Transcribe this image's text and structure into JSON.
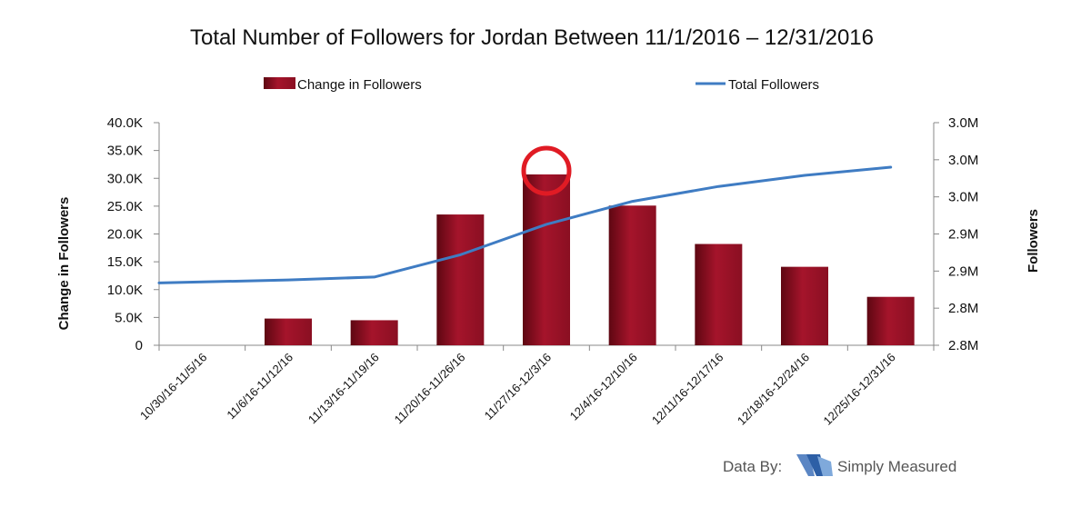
{
  "chart_data": {
    "type": "bar",
    "title": "Total Number of Followers for Jordan Between 11/1/2016 – 12/31/2016",
    "categories": [
      "10/30/16-11/5/16",
      "11/6/16-11/12/16",
      "11/13/16-11/19/16",
      "11/20/16-11/26/16",
      "11/27/16-12/3/16",
      "12/4/16-12/10/16",
      "12/11/16-12/17/16",
      "12/18/16-12/24/16",
      "12/25/16-12/31/16"
    ],
    "series": [
      {
        "name": "Change in Followers",
        "type": "bar",
        "axis": "left",
        "values": [
          0,
          4800,
          4500,
          23500,
          30700,
          25100,
          18200,
          14100,
          8700
        ]
      },
      {
        "name": "Total Followers",
        "type": "line",
        "axis": "right",
        "values": [
          2834000,
          2838000,
          2842000,
          2872000,
          2913000,
          2944000,
          2964000,
          2979000,
          2990000
        ]
      }
    ],
    "ylabel": "Change in Followers",
    "ylabel_right": "Followers",
    "ylim": [
      0,
      40000
    ],
    "ylim_right": [
      2750000,
      3050000
    ],
    "y_ticks": [
      0,
      5000,
      10000,
      15000,
      20000,
      25000,
      30000,
      35000,
      40000
    ],
    "y_tick_labels": [
      "0",
      "5.0K",
      "10.0K",
      "15.0K",
      "20.0K",
      "25.0K",
      "30.0K",
      "35.0K",
      "40.0K"
    ],
    "y_right_ticks": [
      2750000,
      2800000,
      2850000,
      2900000,
      2950000,
      3000000,
      3050000
    ],
    "y_right_tick_labels": [
      "2.8M",
      "2.8M",
      "2.9M",
      "2.9M",
      "3.0M",
      "3.0M",
      "3.0M"
    ],
    "legend_position": "top",
    "grid": false,
    "annotations": [
      {
        "shape": "circle",
        "target_category": "11/27/16-12/3/16",
        "color": "#e01b24"
      }
    ],
    "colors": {
      "bar": "#a01228",
      "line": "#3f7cc3",
      "highlight": "#e01b24"
    }
  },
  "credit": {
    "prefix": "Data By:",
    "brand": "Simply Measured",
    "logo_icon": "simply-measured-logo-icon"
  }
}
